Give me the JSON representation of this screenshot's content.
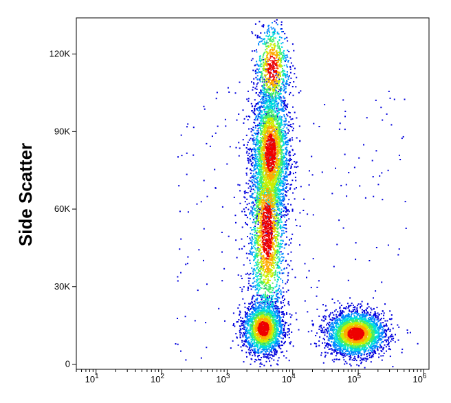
{
  "chart_data": {
    "type": "scatter",
    "title": "",
    "xlabel": "",
    "ylabel": "Side Scatter",
    "x_scale": "log",
    "xlim": [
      5,
      1200000
    ],
    "ylim": [
      -2000,
      134000
    ],
    "grid": false,
    "legend": "none",
    "x_ticks": [
      {
        "base": "10",
        "exp": "1",
        "value": 10
      },
      {
        "base": "10",
        "exp": "2",
        "value": 100
      },
      {
        "base": "10",
        "exp": "3",
        "value": 1000
      },
      {
        "base": "10",
        "exp": "4",
        "value": 10000
      },
      {
        "base": "10",
        "exp": "5",
        "value": 100000
      },
      {
        "base": "10",
        "exp": "6",
        "value": 1000000
      }
    ],
    "y_ticks": [
      {
        "label": "0",
        "value": 0
      },
      {
        "label": "30K",
        "value": 30000
      },
      {
        "label": "60K",
        "value": 60000
      },
      {
        "label": "90K",
        "value": 90000
      },
      {
        "label": "120K",
        "value": 120000
      }
    ],
    "density_colormap": [
      "#0000dd",
      "#0088ff",
      "#00dddd",
      "#44ee66",
      "#ccee00",
      "#ffaa00",
      "#ee0000"
    ],
    "populations": [
      {
        "x_center": 4500,
        "x_spread_log10": 0.14,
        "y_center": 82000,
        "y_spread": 13000,
        "count": 2600
      },
      {
        "x_center": 4000,
        "x_spread_log10": 0.14,
        "y_center": 52000,
        "y_spread": 20000,
        "count": 2400
      },
      {
        "x_center": 3500,
        "x_spread_log10": 0.15,
        "y_center": 14000,
        "y_spread": 5000,
        "count": 2000
      },
      {
        "x_center": 4800,
        "x_spread_log10": 0.13,
        "y_center": 115000,
        "y_spread": 9000,
        "count": 800
      },
      {
        "x_center": 90000,
        "x_spread_log10": 0.22,
        "y_center": 12000,
        "y_spread": 4200,
        "count": 2800
      }
    ]
  }
}
